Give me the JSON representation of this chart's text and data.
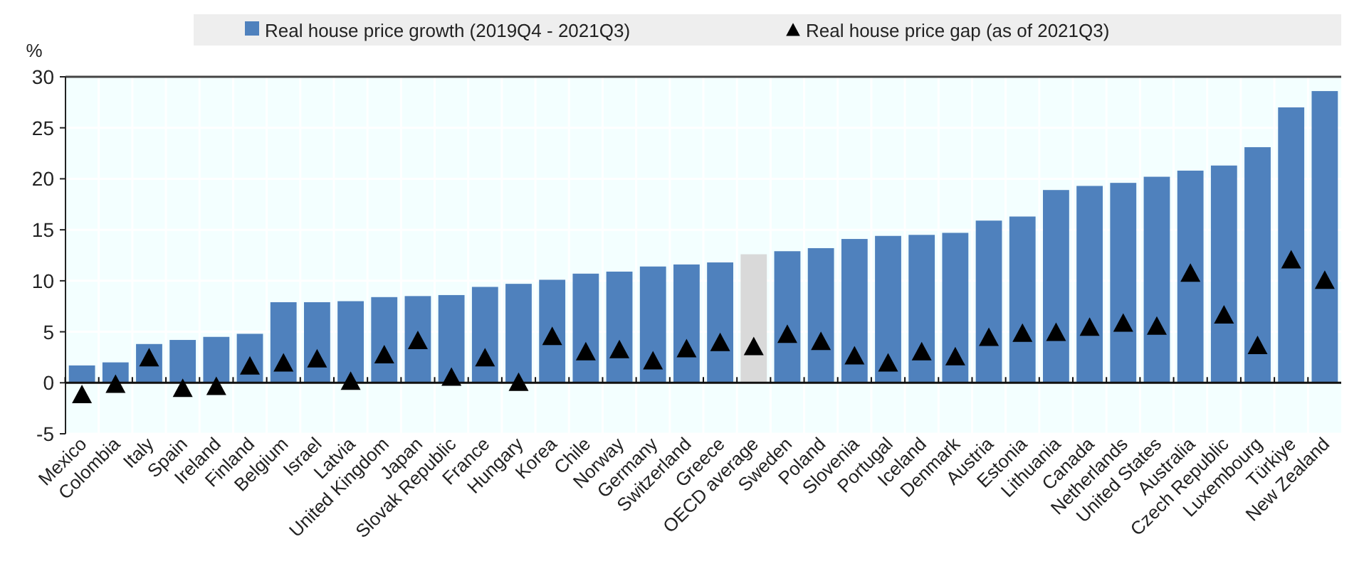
{
  "chart_data": {
    "type": "bar",
    "ylabel": "%",
    "categories": [
      "Mexico",
      "Colombia",
      "Italy",
      "Spain",
      "Ireland",
      "Finland",
      "Belgium",
      "Israel",
      "Latvia",
      "United Kingdom",
      "Japan",
      "Slovak Republic",
      "France",
      "Hungary",
      "Korea",
      "Chile",
      "Norway",
      "Germany",
      "Switzerland",
      "Greece",
      "OECD average",
      "Sweden",
      "Poland",
      "Slovenia",
      "Portugal",
      "Iceland",
      "Denmark",
      "Austria",
      "Estonia",
      "Lithuania",
      "Canada",
      "Netherlands",
      "United States",
      "Australia",
      "Czech Republic",
      "Luxembourg",
      "Türkiye",
      "New Zealand"
    ],
    "series": [
      {
        "name": "Real house price growth (2019Q4 - 2021Q3)",
        "color": "#4f81bd",
        "colors": [
          "#4f81bd",
          "#4f81bd",
          "#4f81bd",
          "#4f81bd",
          "#4f81bd",
          "#4f81bd",
          "#4f81bd",
          "#4f81bd",
          "#4f81bd",
          "#4f81bd",
          "#4f81bd",
          "#4f81bd",
          "#4f81bd",
          "#4f81bd",
          "#4f81bd",
          "#4f81bd",
          "#4f81bd",
          "#4f81bd",
          "#4f81bd",
          "#4f81bd",
          "#d9d9d9",
          "#4f81bd",
          "#4f81bd",
          "#4f81bd",
          "#4f81bd",
          "#4f81bd",
          "#4f81bd",
          "#4f81bd",
          "#4f81bd",
          "#4f81bd",
          "#4f81bd",
          "#4f81bd",
          "#4f81bd",
          "#4f81bd",
          "#4f81bd",
          "#4f81bd",
          "#4f81bd",
          "#4f81bd"
        ],
        "values": [
          1.7,
          2.0,
          3.8,
          4.2,
          4.5,
          4.8,
          7.9,
          7.9,
          8.0,
          8.4,
          8.5,
          8.6,
          9.4,
          9.7,
          10.1,
          10.7,
          10.9,
          11.4,
          11.6,
          11.8,
          12.6,
          12.9,
          13.2,
          14.1,
          14.4,
          14.5,
          14.7,
          15.9,
          16.3,
          18.9,
          19.3,
          19.6,
          20.2,
          20.8,
          21.3,
          23.1,
          27.0,
          28.6
        ]
      },
      {
        "name": "Real house price gap (as of 2021Q3)",
        "type": "scatter",
        "marker": "triangle",
        "color": "#000000",
        "values": [
          -1.3,
          -0.3,
          2.3,
          -0.7,
          -0.5,
          1.5,
          1.8,
          2.2,
          0.0,
          2.6,
          4.0,
          0.4,
          2.3,
          -0.1,
          4.4,
          2.9,
          3.1,
          2.0,
          3.2,
          3.8,
          3.4,
          4.6,
          3.9,
          2.5,
          1.8,
          2.9,
          2.4,
          4.3,
          4.7,
          4.8,
          5.3,
          5.7,
          5.4,
          10.6,
          6.5,
          3.5,
          11.9,
          9.9
        ]
      }
    ],
    "ylim": [
      -5,
      30
    ],
    "yticks": [
      -5,
      0,
      5,
      10,
      15,
      20,
      25,
      30
    ],
    "grid": true,
    "legend": "top"
  }
}
